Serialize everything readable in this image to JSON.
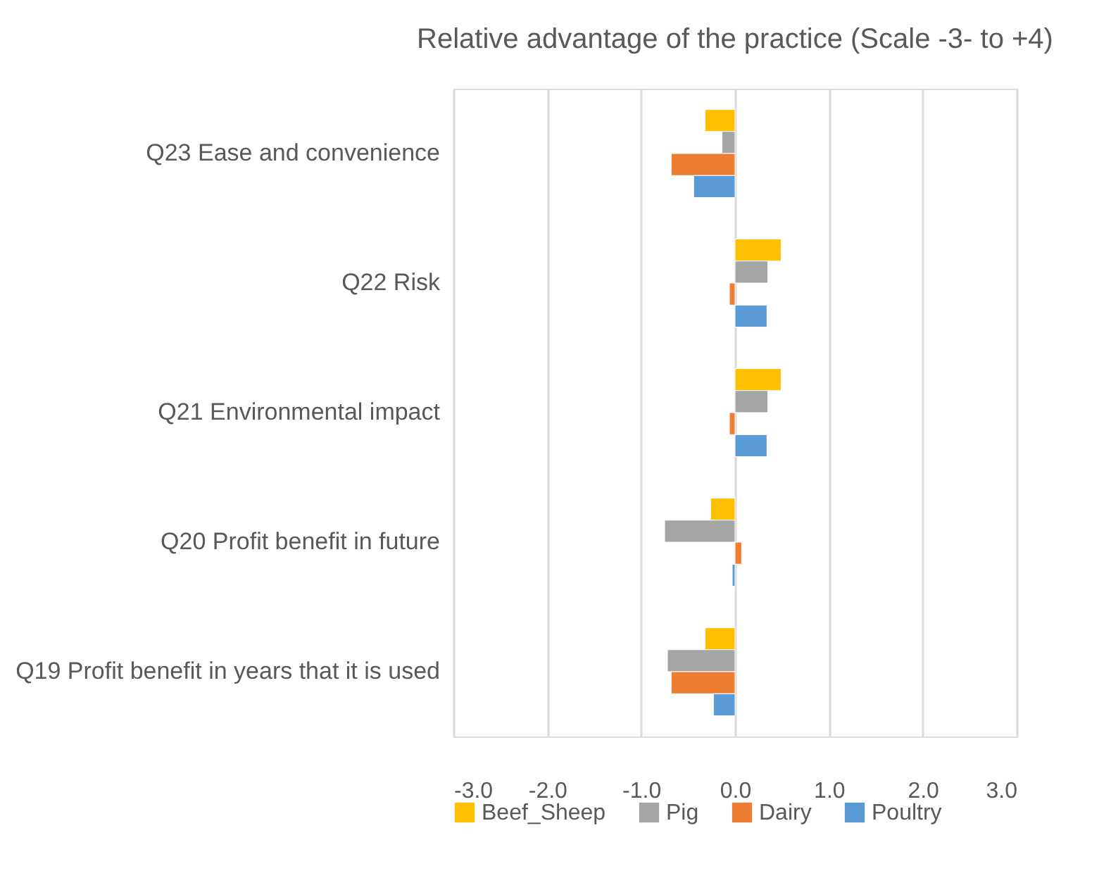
{
  "chart_data": {
    "type": "bar",
    "orientation": "horizontal",
    "title": "Relative advantage of the practice (Scale -3- to +4)",
    "categories": [
      "Q23 Ease and convenience",
      "Q22 Risk",
      "Q21 Environmental impact",
      "Q20 Profit benefit in future",
      "Q19 Profit benefit in years that it is used"
    ],
    "series": [
      {
        "name": "Beef_Sheep",
        "color": "#ffc000",
        "values": [
          -0.32,
          0.49,
          0.49,
          -0.26,
          -0.32
        ]
      },
      {
        "name": "Pig",
        "color": "#a5a5a5",
        "values": [
          -0.14,
          0.35,
          0.35,
          -0.75,
          -0.72
        ]
      },
      {
        "name": "Dairy",
        "color": "#ed7d31",
        "values": [
          -0.68,
          -0.06,
          -0.06,
          0.07,
          -0.68
        ]
      },
      {
        "name": "Poultry",
        "color": "#5b9bd5",
        "values": [
          -0.44,
          0.34,
          0.34,
          -0.03,
          -0.23
        ]
      }
    ],
    "xlim": [
      -3,
      3
    ],
    "xticks": [
      {
        "value": -3,
        "label": "-3.0"
      },
      {
        "value": -2,
        "label": "-2.0"
      },
      {
        "value": -1,
        "label": "-1.0"
      },
      {
        "value": 0,
        "label": "0.0"
      },
      {
        "value": 1,
        "label": "1.0"
      },
      {
        "value": 2,
        "label": "2.0"
      },
      {
        "value": 3,
        "label": "3.0"
      }
    ],
    "grid": "x",
    "legend": "bottom"
  }
}
